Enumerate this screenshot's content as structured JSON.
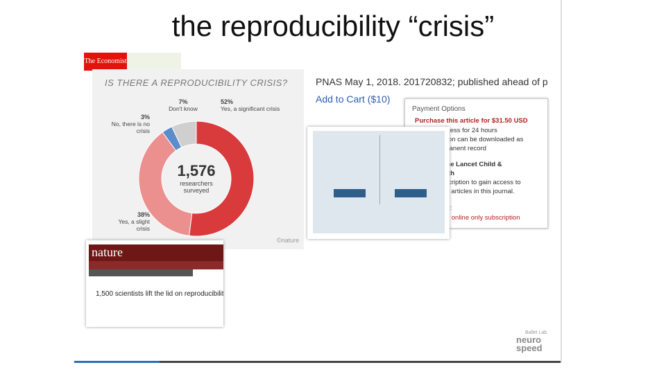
{
  "title": "the reproducibility “crisis”",
  "economist": {
    "name": "The Economist"
  },
  "chart_data": {
    "type": "pie",
    "title": "IS THERE A REPRODUCIBILITY CRISIS?",
    "categories": [
      "Yes, a significant crisis",
      "Yes, a slight crisis",
      "No, there is no crisis",
      "Don't know"
    ],
    "values": [
      52,
      38,
      3,
      7
    ],
    "value_labels": [
      "52%",
      "38%",
      "3%",
      "7%"
    ],
    "colors": [
      "#d93a3c",
      "#eb8f8f",
      "#5b8ccb",
      "#cfcfcf"
    ],
    "center_value": "1,576",
    "center_label": "researchers surveyed",
    "credit": "©nature"
  },
  "pnas": {
    "citation": "PNAS May 1, 2018. 201720832; published ahead of p",
    "cart": "Add to Cart ($10)"
  },
  "payment": {
    "title": "Payment Options",
    "purchase": "Purchase this article for $31.50 USD",
    "lines": [
      "e access for 24 hours",
      "version can be downloaded as",
      "permanent record",
      "to The Lancet Child &",
      "Health",
      "subscription to gain access to",
      "other articles in this journal.",
      "clude:",
      "l online only subscription"
    ]
  },
  "nature": {
    "logo": "nature",
    "headline": "1,500 scientists lift the lid on reproducibility"
  },
  "logo": {
    "lab": "Ballet Lab",
    "brand_top": "neuro",
    "brand_bottom": "speed"
  }
}
